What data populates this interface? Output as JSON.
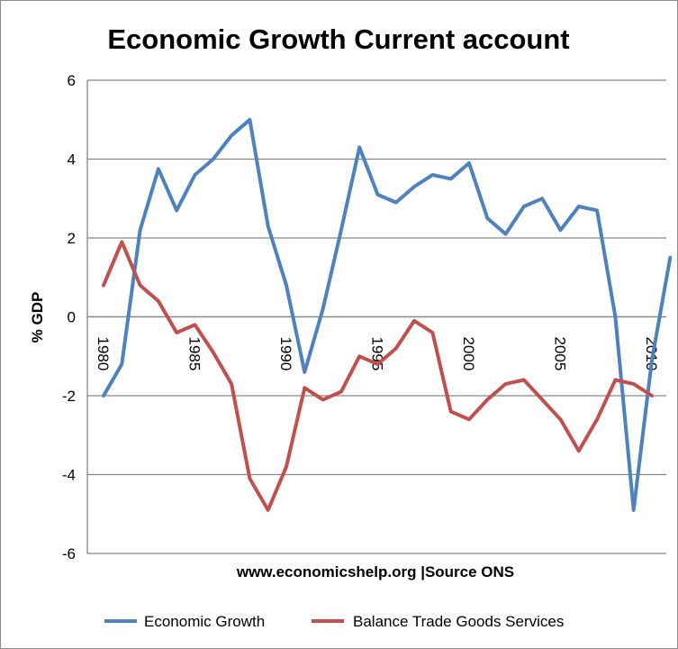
{
  "chart_data": {
    "type": "line",
    "title": "Economic Growth Current account",
    "ylabel": "% GDP",
    "xlabel": "www.economicshelp.org |Source ONS",
    "ylim": [
      -6,
      6
    ],
    "yticks": [
      6,
      4,
      2,
      0,
      -2,
      -4,
      -6
    ],
    "xlim": [
      1980,
      2011
    ],
    "xticks": [
      1980,
      1985,
      1990,
      1995,
      2000,
      2005,
      2010
    ],
    "grid": true,
    "legend_position": "bottom",
    "x": [
      1980,
      1981,
      1982,
      1983,
      1984,
      1985,
      1986,
      1987,
      1988,
      1989,
      1990,
      1991,
      1992,
      1993,
      1994,
      1995,
      1996,
      1997,
      1998,
      1999,
      2000,
      2001,
      2002,
      2003,
      2004,
      2005,
      2006,
      2007,
      2008,
      2009,
      2010,
      2011
    ],
    "series": [
      {
        "name": "Economic Growth",
        "color": "#4f81bd",
        "values": [
          -2.0,
          -1.2,
          2.2,
          3.75,
          2.7,
          3.6,
          4.0,
          4.6,
          5.0,
          2.3,
          0.8,
          -1.4,
          0.2,
          2.2,
          4.3,
          3.1,
          2.9,
          3.3,
          3.6,
          3.5,
          3.9,
          2.5,
          2.1,
          2.8,
          3.0,
          2.2,
          2.8,
          2.7,
          0.0,
          -4.9,
          -1.1,
          1.5
        ]
      },
      {
        "name": "Balance Trade Goods Services",
        "color": "#c0504d",
        "values": [
          0.8,
          1.9,
          0.8,
          0.4,
          -0.4,
          -0.2,
          -0.9,
          -1.7,
          -4.1,
          -4.9,
          -3.8,
          -1.8,
          -2.1,
          -1.9,
          -1.0,
          -1.2,
          -0.8,
          -0.1,
          -0.4,
          -2.4,
          -2.6,
          -2.1,
          -1.7,
          -1.6,
          -2.1,
          -2.6,
          -3.4,
          -2.6,
          -1.6,
          -1.7,
          -2.0,
          null
        ]
      }
    ]
  }
}
